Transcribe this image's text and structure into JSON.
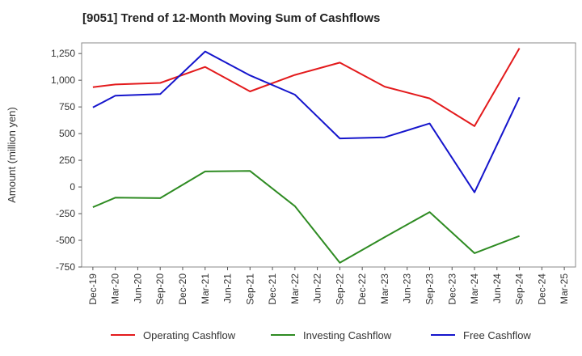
{
  "chart_data": {
    "type": "line",
    "title": "[9051]  Trend of 12-Month Moving Sum of Cashflows",
    "ylabel": "Amount (million yen)",
    "xlabel": "",
    "categories": [
      "Dec-19",
      "Mar-20",
      "Jun-20",
      "Sep-20",
      "Dec-20",
      "Mar-21",
      "Jun-21",
      "Sep-21",
      "Dec-21",
      "Mar-22",
      "Jun-22",
      "Sep-22",
      "Dec-22",
      "Mar-23",
      "Jun-23",
      "Sep-23",
      "Dec-23",
      "Mar-24",
      "Jun-24",
      "Sep-24",
      "Dec-24",
      "Mar-25"
    ],
    "y_ticks": [
      1250,
      1000,
      750,
      500,
      250,
      0,
      -250,
      -500,
      -750
    ],
    "y_tick_labels": [
      "1,250",
      "1,000",
      "750",
      "500",
      "250",
      "0",
      "-250",
      "-500",
      "-750"
    ],
    "ylim": [
      -750,
      1350
    ],
    "grid": true,
    "legend_position": "bottom",
    "series": [
      {
        "name": "Operating Cashflow",
        "color": "#e31a1c",
        "values": [
          935,
          960,
          null,
          975,
          null,
          1125,
          null,
          895,
          null,
          1050,
          null,
          1165,
          null,
          940,
          null,
          830,
          null,
          570,
          null,
          1300,
          null,
          null
        ]
      },
      {
        "name": "Investing Cashflow",
        "color": "#2e8b22",
        "values": [
          -190,
          -100,
          null,
          -105,
          null,
          145,
          null,
          150,
          null,
          -180,
          null,
          -710,
          null,
          -470,
          null,
          -235,
          null,
          -620,
          null,
          -460,
          null,
          null
        ]
      },
      {
        "name": "Free Cashflow",
        "color": "#1515cc",
        "values": [
          745,
          855,
          null,
          870,
          null,
          1270,
          null,
          1045,
          null,
          865,
          null,
          455,
          null,
          465,
          null,
          595,
          null,
          -50,
          null,
          840,
          null,
          null
        ]
      }
    ]
  }
}
